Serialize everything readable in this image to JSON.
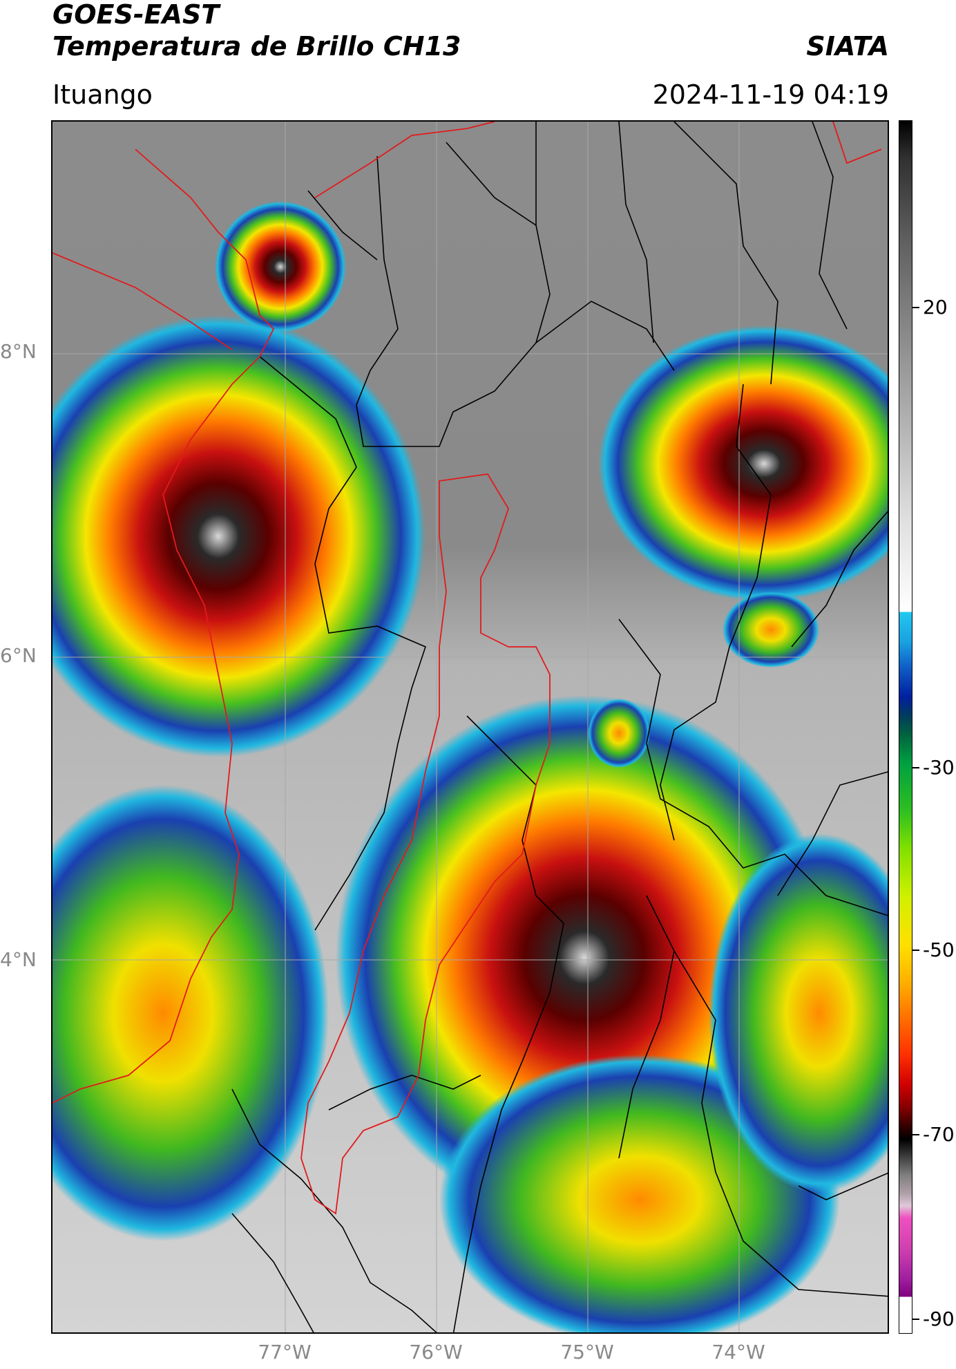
{
  "header": {
    "title_line1": "GOES-EAST",
    "title_line2": "Temperatura de Brillo CH13",
    "agency": "SIATA",
    "location": "Ituango",
    "datetime": "2024-11-19 04:19"
  },
  "map": {
    "lat_labels": [
      "8°N",
      "6°N",
      "4°N"
    ],
    "lon_labels": [
      "77°W",
      "76°W",
      "75°W",
      "74°W"
    ],
    "border_colors": {
      "basin": "#e31a1c",
      "admin": "#000000",
      "grid": "#b0b0b0"
    }
  },
  "colorbar": {
    "labels": [
      "20",
      "-30",
      "-50",
      "-70",
      "-90"
    ],
    "unit_scale_top": 25,
    "unit_scale_bottom": -92
  }
}
